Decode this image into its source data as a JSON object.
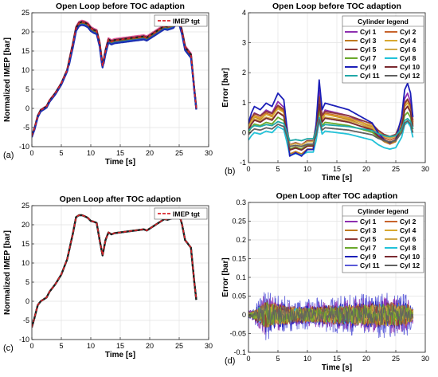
{
  "chart_data": [
    {
      "panel_label": "(a)",
      "type": "line",
      "title": "Open Loop before TOC adaption",
      "xlabel": "Time [s]",
      "ylabel": "Normalized IMEP [bar]",
      "xlim": [
        0,
        30
      ],
      "ylim": [
        -10,
        25
      ],
      "xticks": [
        0,
        5,
        10,
        15,
        20,
        25,
        30
      ],
      "yticks": [
        -10,
        -5,
        0,
        5,
        10,
        15,
        20,
        25
      ],
      "grid": true,
      "legend": {
        "position": "top-right",
        "entries": [
          "IMEP tgt"
        ]
      },
      "spread": 0.6,
      "base": [
        [
          0,
          -7.2
        ],
        [
          0.5,
          -5
        ],
        [
          1,
          -2
        ],
        [
          1.5,
          -0.5
        ],
        [
          2,
          0
        ],
        [
          2.5,
          0.5
        ],
        [
          3,
          2
        ],
        [
          4,
          4
        ],
        [
          5,
          6.5
        ],
        [
          6,
          10
        ],
        [
          7,
          17
        ],
        [
          7.5,
          21
        ],
        [
          8,
          22.3
        ],
        [
          8.5,
          22.6
        ],
        [
          9,
          22.4
        ],
        [
          9.5,
          22
        ],
        [
          10,
          21
        ],
        [
          10.5,
          20.5
        ],
        [
          11,
          20.2
        ],
        [
          11.5,
          17
        ],
        [
          12,
          11
        ],
        [
          12.5,
          15
        ],
        [
          13,
          18
        ],
        [
          13.5,
          17.5
        ],
        [
          14,
          17.8
        ],
        [
          15,
          18
        ],
        [
          16,
          18.2
        ],
        [
          17,
          18.4
        ],
        [
          18,
          18.6
        ],
        [
          19,
          18.8
        ],
        [
          19.5,
          18.5
        ],
        [
          20,
          19
        ],
        [
          21,
          20
        ],
        [
          22,
          21
        ],
        [
          22.5,
          21.5
        ],
        [
          23,
          21.3
        ],
        [
          24,
          21.8
        ],
        [
          24.5,
          22.8
        ],
        [
          25,
          22.8
        ],
        [
          25.5,
          20
        ],
        [
          26,
          16
        ],
        [
          26.5,
          15
        ],
        [
          27,
          14
        ],
        [
          27.5,
          6
        ],
        [
          28,
          -1.5
        ]
      ],
      "series": [
        {
          "color": "#7a3cf0",
          "offset": 0.0
        },
        {
          "color": "#2a6edc",
          "offset": -0.5
        },
        {
          "color": "#36c3d8",
          "offset": 0.25
        },
        {
          "color": "#e8a020",
          "offset": 0.1
        },
        {
          "color": "#3a7a2a",
          "offset": -0.2
        },
        {
          "color": "#e05898",
          "offset": 0.35
        },
        {
          "color": "#9a6a30",
          "offset": -0.1
        },
        {
          "color": "#202020",
          "offset": 0.05
        },
        {
          "color": "#1c2fb0",
          "offset": -0.8
        }
      ],
      "target_series": {
        "name": "IMEP tgt",
        "color": "#d9232a"
      }
    },
    {
      "panel_label": "(b)",
      "type": "line",
      "title": "Open Loop before TOC adaption",
      "xlabel": "Time [s]",
      "ylabel": "Error [bar]",
      "xlim": [
        0,
        30
      ],
      "ylim": [
        -1,
        4
      ],
      "xticks": [
        0,
        5,
        10,
        15,
        20,
        25,
        30
      ],
      "yticks": [
        -1,
        0,
        1,
        2,
        3,
        4
      ],
      "grid": true,
      "legend": {
        "position": "top-right",
        "title": "Cylinder legend",
        "entries": [
          "Cyl 1",
          "Cyl 2",
          "Cyl 3",
          "Cyl 4",
          "Cyl 5",
          "Cyl 6",
          "Cyl 7",
          "Cyl 8",
          "Cyl 9",
          "Cyl 10",
          "Cyl 11",
          "Cyl 12"
        ]
      },
      "colors": [
        "#8e2fb0",
        "#c8642c",
        "#c07a20",
        "#d8a830",
        "#8e3a3a",
        "#d0a848",
        "#6aa82a",
        "#22c2d8",
        "#1c1fb8",
        "#7a2a30",
        "#20a8a8",
        "#606060"
      ],
      "base": [
        [
          0,
          0.1
        ],
        [
          0.5,
          0.25
        ],
        [
          1,
          0.35
        ],
        [
          2,
          0.3
        ],
        [
          3,
          0.4
        ],
        [
          4,
          0.35
        ],
        [
          5,
          0.55
        ],
        [
          6,
          0.45
        ],
        [
          6.5,
          0.05
        ],
        [
          7,
          -0.4
        ],
        [
          8,
          -0.35
        ],
        [
          9,
          -0.4
        ],
        [
          10,
          -0.3
        ],
        [
          11,
          -0.3
        ],
        [
          11.5,
          0.1
        ],
        [
          12,
          0.75
        ],
        [
          12.5,
          0.3
        ],
        [
          13,
          0.4
        ],
        [
          15,
          0.35
        ],
        [
          17,
          0.3
        ],
        [
          19,
          0.2
        ],
        [
          20,
          0.15
        ],
        [
          21,
          0.1
        ],
        [
          22,
          -0.05
        ],
        [
          23,
          -0.15
        ],
        [
          24,
          -0.2
        ],
        [
          25,
          -0.15
        ],
        [
          26,
          0.2
        ],
        [
          26.5,
          0.6
        ],
        [
          27,
          0.7
        ],
        [
          27.5,
          0.55
        ],
        [
          28,
          0.1
        ]
      ],
      "amps": [
        1.6,
        0.9,
        1.2,
        0.5,
        0.7,
        0.3,
        0.2,
        0.0,
        2.2,
        0.6,
        -0.6,
        -0.4
      ],
      "shifts": [
        0.0,
        0.05,
        -0.05,
        0.1,
        0.15,
        0.05,
        -0.1,
        -0.35,
        0.1,
        -0.05,
        0.0,
        -0.15
      ]
    },
    {
      "panel_label": "(c)",
      "type": "line",
      "title": "Open Loop after TOC adaption",
      "xlabel": "Time [s]",
      "ylabel": "Normalized IMEP [bar]",
      "xlim": [
        0,
        30
      ],
      "ylim": [
        -10,
        25
      ],
      "xticks": [
        0,
        5,
        10,
        15,
        20,
        25,
        30
      ],
      "yticks": [
        -10,
        -5,
        0,
        5,
        10,
        15,
        20,
        25
      ],
      "grid": true,
      "legend": {
        "position": "top-right",
        "entries": [
          "IMEP tgt"
        ]
      },
      "spread": 0.15,
      "base": [
        [
          0,
          -6.8
        ],
        [
          0.5,
          -4
        ],
        [
          1,
          -1
        ],
        [
          1.5,
          0
        ],
        [
          2,
          0.5
        ],
        [
          2.5,
          1
        ],
        [
          3,
          2.5
        ],
        [
          4,
          4.5
        ],
        [
          5,
          7
        ],
        [
          6,
          11
        ],
        [
          7,
          18
        ],
        [
          7.5,
          22
        ],
        [
          8,
          22.5
        ],
        [
          8.5,
          22.5
        ],
        [
          9,
          22.2
        ],
        [
          9.5,
          21.8
        ],
        [
          10,
          21
        ],
        [
          10.5,
          20.8
        ],
        [
          11,
          20.5
        ],
        [
          11.5,
          16
        ],
        [
          12,
          12
        ],
        [
          12.5,
          16
        ],
        [
          13,
          18
        ],
        [
          13.5,
          17.5
        ],
        [
          14,
          17.8
        ],
        [
          15,
          18
        ],
        [
          16,
          18.2
        ],
        [
          17,
          18.4
        ],
        [
          18,
          18.6
        ],
        [
          19,
          18.8
        ],
        [
          19.5,
          18.5
        ],
        [
          20,
          19
        ],
        [
          21,
          20
        ],
        [
          22,
          21
        ],
        [
          22.5,
          21.5
        ],
        [
          23,
          21.3
        ],
        [
          24,
          21.8
        ],
        [
          24.5,
          22.8
        ],
        [
          25,
          22.8
        ],
        [
          25.5,
          20
        ],
        [
          26,
          16
        ],
        [
          26.5,
          15
        ],
        [
          27,
          14
        ],
        [
          27.5,
          6
        ],
        [
          28,
          -1
        ]
      ],
      "series": [
        {
          "color": "#7a3cf0",
          "offset": 0.0
        },
        {
          "color": "#e05898",
          "offset": 0.12
        },
        {
          "color": "#36c3d8",
          "offset": -0.1
        },
        {
          "color": "#3a7a2a",
          "offset": 0.05
        },
        {
          "color": "#202020",
          "offset": -0.05
        }
      ],
      "target_series": {
        "name": "IMEP tgt",
        "color": "#d9232a"
      }
    },
    {
      "panel_label": "(d)",
      "type": "line",
      "title": "Open Loop after TOC adaption",
      "xlabel": "Time [s]",
      "ylabel": "Error [bar]",
      "xlim": [
        0,
        30
      ],
      "ylim": [
        -0.1,
        0.3
      ],
      "xticks": [
        0,
        5,
        10,
        15,
        20,
        25,
        30
      ],
      "yticks": [
        -0.1,
        -0.05,
        0,
        0.05,
        0.1,
        0.15,
        0.2,
        0.25,
        0.3
      ],
      "grid": true,
      "legend": {
        "position": "top-right",
        "title": "Cylinder legend",
        "entries": [
          "Cyl 1",
          "Cyl 2",
          "Cyl 3",
          "Cyl 4",
          "Cyl 5",
          "Cyl 6",
          "Cyl 7",
          "Cyl 8",
          "Cyl 9",
          "Cyl 10",
          "Cyl 11",
          "Cyl 12"
        ]
      },
      "colors": [
        "#8e2fb0",
        "#c8642c",
        "#c07a20",
        "#d8a830",
        "#8e3a3a",
        "#d0a848",
        "#6aa82a",
        "#22c2d8",
        "#1c1fb8",
        "#7a2a30",
        "#5a5ad8",
        "#606060"
      ],
      "draw_order": [
        10,
        0,
        8,
        9,
        1,
        7,
        2,
        3,
        4,
        5,
        6,
        11
      ],
      "amp_profile": [
        [
          0,
          0.01
        ],
        [
          1,
          0.02
        ],
        [
          2,
          0.04
        ],
        [
          3,
          0.06
        ],
        [
          4,
          0.05
        ],
        [
          6,
          0.04
        ],
        [
          8,
          0.03
        ],
        [
          12,
          0.035
        ],
        [
          16,
          0.04
        ],
        [
          20,
          0.045
        ],
        [
          24,
          0.05
        ],
        [
          27,
          0.045
        ],
        [
          28,
          0.02
        ]
      ],
      "amp_scale": [
        1.0,
        0.7,
        0.6,
        0.6,
        0.6,
        0.5,
        0.6,
        0.6,
        0.8,
        0.7,
        1.3,
        0.55
      ]
    }
  ]
}
